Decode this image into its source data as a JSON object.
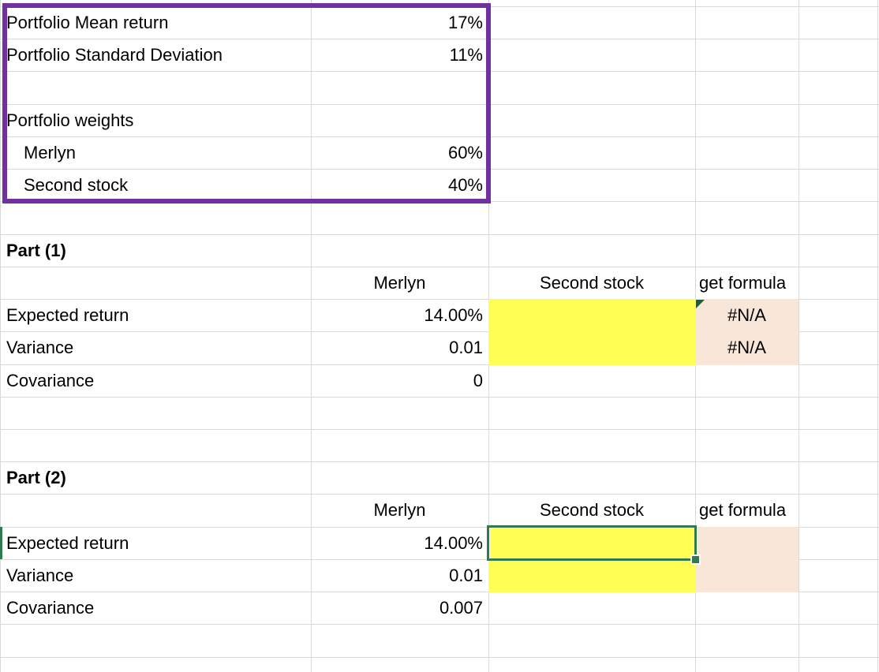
{
  "sheet": {
    "summary": {
      "mean_return": {
        "label": "Portfolio Mean return",
        "value": "17%"
      },
      "std_dev": {
        "label": "Portfolio Standard Deviation",
        "value": "11%"
      },
      "weights_title": "Portfolio weights",
      "weights": [
        {
          "label": "Merlyn",
          "value": "60%"
        },
        {
          "label": "Second stock",
          "value": "40%"
        }
      ]
    },
    "part1": {
      "title": "Part (1)",
      "headers": {
        "merlyn": "Merlyn",
        "second_stock": "Second stock",
        "get_formula": "get formula"
      },
      "expected_return": {
        "label": "Expected return",
        "merlyn": "14.00%",
        "second_stock": "",
        "get_formula": "#N/A"
      },
      "variance": {
        "label": "Variance",
        "merlyn": "0.01",
        "second_stock": "",
        "get_formula": "#N/A"
      },
      "covariance": {
        "label": "Covariance",
        "merlyn": "0"
      }
    },
    "part2": {
      "title": "Part (2)",
      "headers": {
        "merlyn": "Merlyn",
        "second_stock": "Second stock",
        "get_formula": "get formula"
      },
      "expected_return": {
        "label": "Expected return",
        "merlyn": "14.00%",
        "second_stock": "",
        "get_formula": ""
      },
      "variance": {
        "label": "Variance",
        "merlyn": "0.01",
        "second_stock": "",
        "get_formula": ""
      },
      "covariance": {
        "label": "Covariance",
        "merlyn": "0.007"
      }
    },
    "colors": {
      "input_highlight": "#FEFE55",
      "formula_highlight": "#F8E6D8",
      "summary_border_purple": "#7030A0",
      "selection_green": "#2E7B4F",
      "error_indicator_green": "#265C33",
      "gridline": "#D9D9D9"
    }
  }
}
